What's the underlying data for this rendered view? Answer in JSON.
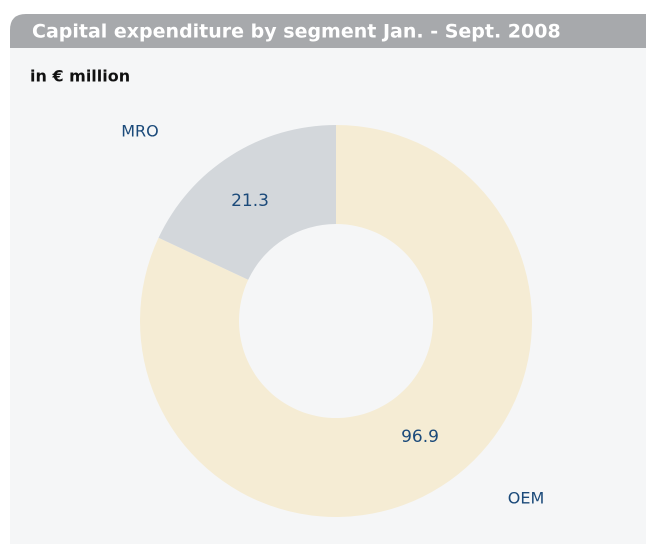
{
  "chart_data": {
    "type": "pie",
    "title": "Capital expenditure by segment Jan. - Sept. 2008",
    "subtitle": "in € million",
    "categories": [
      "OEM",
      "MRO"
    ],
    "values": [
      96.9,
      21.3
    ],
    "colors": [
      "#f5ecd4",
      "#d3d7db"
    ],
    "donut": true
  }
}
